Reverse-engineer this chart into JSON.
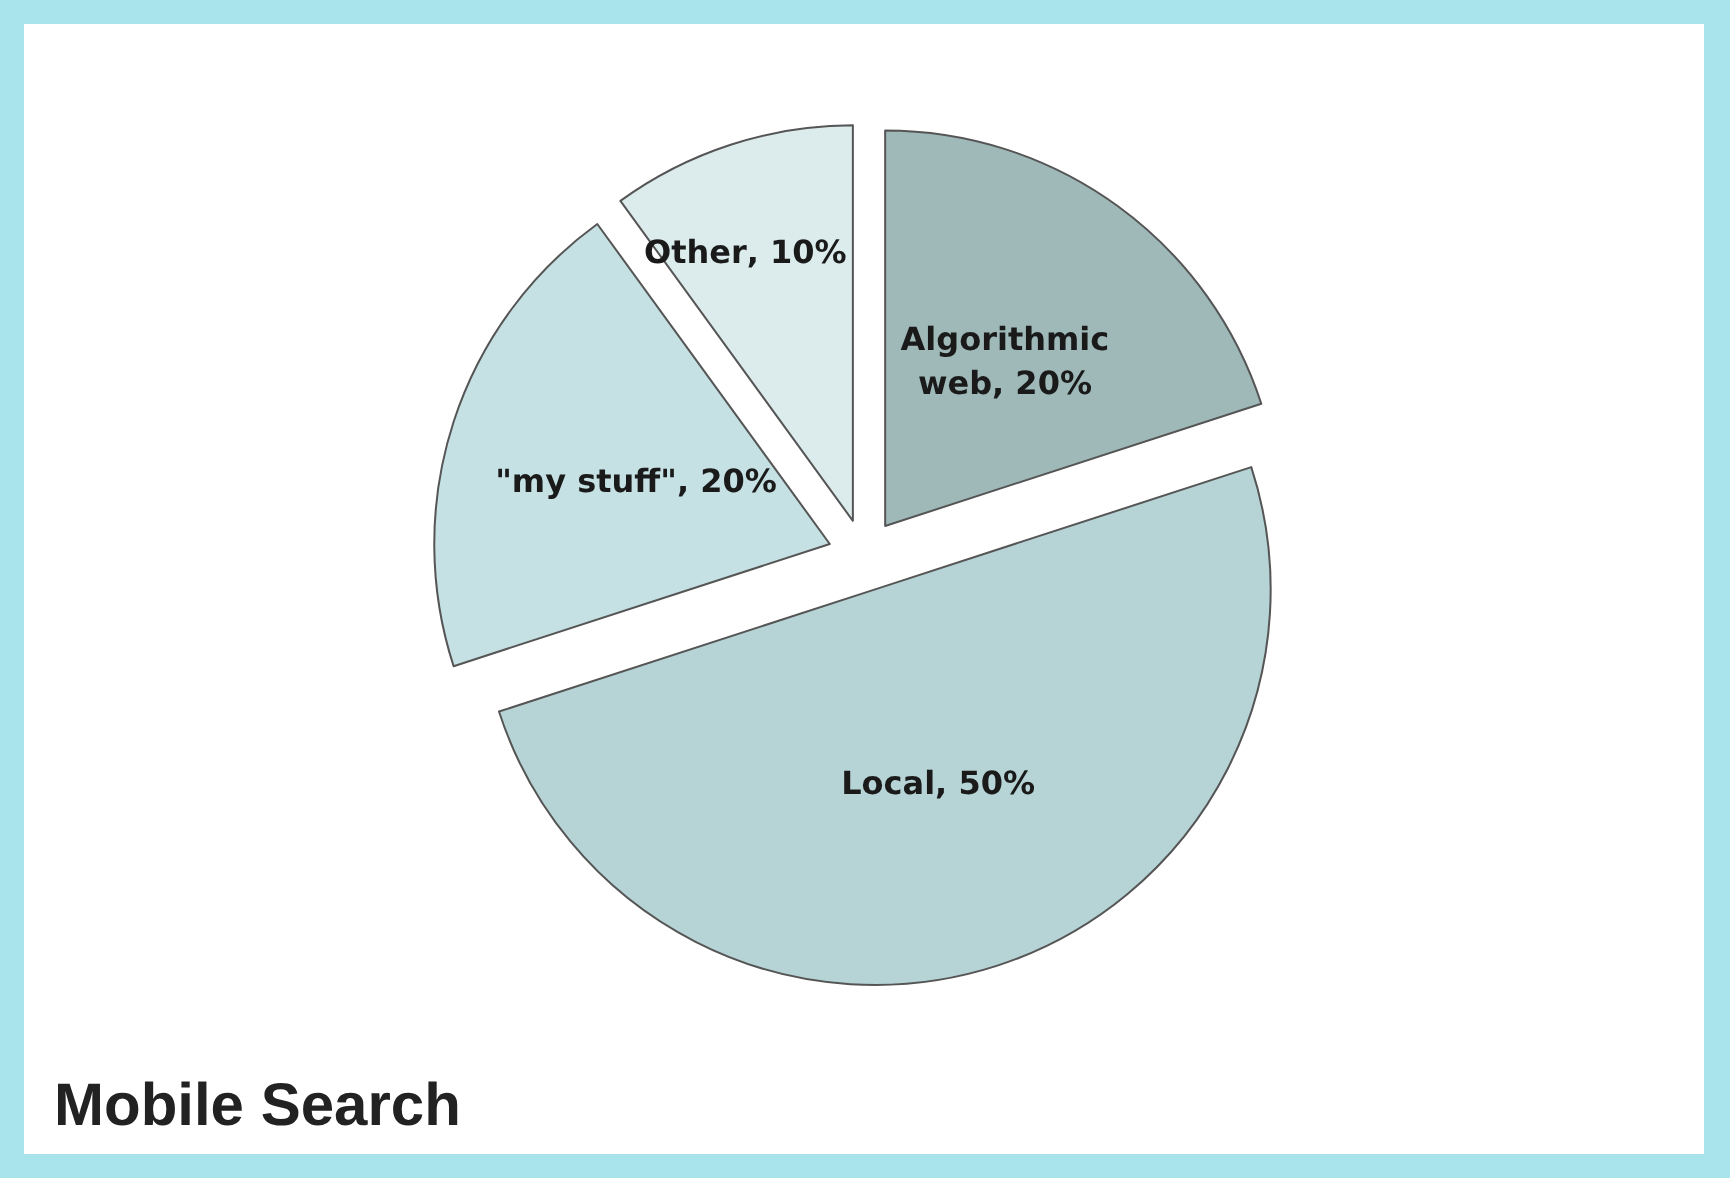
{
  "chart_data": {
    "type": "pie",
    "title": "Mobile Search",
    "categories": [
      "Algorithmic web",
      "Local",
      "\"my stuff\"",
      "Other"
    ],
    "values": [
      20,
      50,
      20,
      10
    ],
    "colors": [
      "#9fb9b9",
      "#b6d4d6",
      "#c6e1e3",
      "#dcecec"
    ],
    "value_labels": [
      ", 20%",
      ", 50%",
      ", 20%",
      ", 10%"
    ],
    "legend": false
  }
}
